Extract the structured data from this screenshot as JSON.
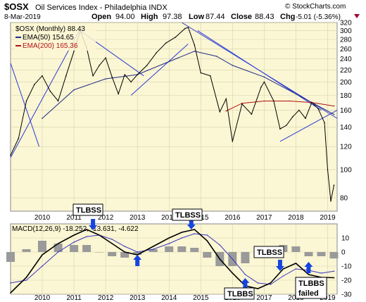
{
  "header": {
    "symbol": "$OSX",
    "name": "Oil Services Index - Philadelphia INDX",
    "watermark": "© StockCharts.com",
    "date": "8-Mar-2019",
    "open_label": "Open",
    "open": "94.00",
    "high_label": "High",
    "high": "97.38",
    "low_label": "Low",
    "low": "87.44",
    "close_label": "Close",
    "close": "88.43",
    "chg_label": "Chg",
    "chg": "-5.01 (-5.36%)"
  },
  "legend": {
    "price": "$OSX (Monthly) 88.43",
    "ema50": "EMA(50) 154.65",
    "ema200": "EMA(200) 165.36"
  },
  "macd_label": "MACD(12,26,9) -18.252, -13.631, -4.622",
  "annotations": {
    "tlbss_1": "TLBSS",
    "tlbss_2": "TLBSS",
    "tlbss_3": "TLBSS",
    "tlbbs": "TLBBS",
    "tlbbs_failed_1": "TLBBS",
    "tlbbs_failed_2": "failed"
  },
  "colors": {
    "panel_bg": "#fbf6d3",
    "price": "#000000",
    "ema50": "#1f2a8a",
    "ema200": "#b01212",
    "trendline": "#2a3bd6",
    "macd_line": "#000000",
    "signal_line": "#3a36c0",
    "histogram": "#9a9a9a",
    "arrow": "#1544e0",
    "down_triangle": "#a0002a"
  },
  "chart_data": [
    {
      "type": "line",
      "title": "$OSX Oil Services Index - Philadelphia INDX",
      "price_scale": "log",
      "ylim": [
        72,
        320
      ],
      "xlim": [
        2009.0,
        2019.3
      ],
      "yticks": [
        80,
        100,
        120,
        140,
        160,
        180,
        200,
        220,
        240,
        260,
        280,
        300,
        320
      ],
      "xticks": [
        2010,
        2011,
        2012,
        2013,
        2014,
        2015,
        2016,
        2017,
        2018,
        2019
      ],
      "series": [
        {
          "name": "$OSX (Monthly)",
          "x": [
            2009.0,
            2009.25,
            2009.5,
            2009.75,
            2010.0,
            2010.25,
            2010.5,
            2010.75,
            2011.0,
            2011.2,
            2011.4,
            2011.6,
            2011.8,
            2012.0,
            2012.2,
            2012.4,
            2012.6,
            2012.8,
            2013.0,
            2013.3,
            2013.6,
            2013.9,
            2014.2,
            2014.5,
            2014.6,
            2014.8,
            2015.0,
            2015.3,
            2015.6,
            2015.8,
            2016.0,
            2016.3,
            2016.6,
            2016.9,
            2017.0,
            2017.3,
            2017.5,
            2017.7,
            2017.9,
            2018.1,
            2018.3,
            2018.5,
            2018.7,
            2018.9,
            2019.0,
            2019.1,
            2019.2
          ],
          "y": [
            112,
            128,
            172,
            196,
            210,
            186,
            172,
            210,
            255,
            300,
            262,
            210,
            228,
            242,
            208,
            182,
            212,
            200,
            212,
            228,
            252,
            272,
            285,
            305,
            308,
            268,
            215,
            210,
            158,
            175,
            125,
            168,
            155,
            192,
            200,
            172,
            138,
            142,
            152,
            160,
            150,
            170,
            162,
            145,
            100,
            78,
            88.43
          ]
        },
        {
          "name": "EMA(50)",
          "values_at_end": 154.65,
          "x": [
            2010.0,
            2011.0,
            2012.0,
            2013.0,
            2014.0,
            2014.8,
            2015.5,
            2016.0,
            2017.0,
            2018.0,
            2019.2
          ],
          "y": [
            150,
            188,
            205,
            212,
            235,
            255,
            245,
            228,
            208,
            182,
            154.65
          ]
        },
        {
          "name": "EMA(200)",
          "values_at_end": 165.36,
          "x": [
            2015.8,
            2016.3,
            2017.0,
            2017.8,
            2018.5,
            2019.2
          ],
          "y": [
            159,
            169,
            172,
            172,
            170,
            165.36
          ]
        }
      ],
      "annotations": [
        "TLBSS (2011.5)",
        "TLBSS (2014.6)"
      ]
    },
    {
      "type": "bar",
      "title": "MACD(12,26,9) -18.252, -13.631, -4.622",
      "ylim": [
        -30,
        20
      ],
      "yticks": [
        -30,
        -20,
        -10,
        0,
        10
      ],
      "xticks": [
        2010,
        2011,
        2012,
        2013,
        2014,
        2015,
        2016,
        2017,
        2018,
        2019
      ],
      "series": [
        {
          "name": "MACD",
          "x": [
            2009.0,
            2009.5,
            2010.0,
            2010.5,
            2011.0,
            2011.4,
            2011.8,
            2012.2,
            2012.6,
            2013.0,
            2013.5,
            2014.0,
            2014.4,
            2014.8,
            2015.2,
            2015.6,
            2016.0,
            2016.4,
            2016.8,
            2017.2,
            2017.6,
            2018.0,
            2018.4,
            2018.8,
            2019.2
          ],
          "y": [
            -29,
            -18,
            -2,
            6,
            12,
            16,
            12,
            6,
            0,
            -2,
            4,
            10,
            14,
            16,
            8,
            -5,
            -15,
            -24,
            -26,
            -22,
            -12,
            -8,
            -16,
            -18,
            -18.252
          ]
        },
        {
          "name": "Signal",
          "x": [
            2009.0,
            2009.5,
            2010.0,
            2010.5,
            2011.0,
            2011.4,
            2011.8,
            2012.2,
            2012.6,
            2013.0,
            2013.5,
            2014.0,
            2014.4,
            2014.8,
            2015.2,
            2015.6,
            2016.0,
            2016.4,
            2016.8,
            2017.2,
            2017.6,
            2018.0,
            2018.4,
            2018.8,
            2019.2
          ],
          "y": [
            -22,
            -20,
            -10,
            0,
            7,
            11,
            12,
            9,
            4,
            0,
            2,
            6,
            10,
            13,
            12,
            5,
            -5,
            -16,
            -22,
            -23,
            -17,
            -12,
            -13,
            -15,
            -13.631
          ]
        },
        {
          "name": "Histogram",
          "x": [
            2009.0,
            2009.5,
            2010.0,
            2010.5,
            2011.0,
            2011.4,
            2011.8,
            2012.2,
            2012.6,
            2013.0,
            2013.5,
            2014.0,
            2014.4,
            2014.8,
            2015.2,
            2015.6,
            2016.0,
            2016.4,
            2016.8,
            2017.2,
            2017.6,
            2018.0,
            2018.4,
            2018.8,
            2019.2
          ],
          "y": [
            -7,
            2,
            8,
            6,
            5,
            5,
            0,
            -3,
            -4,
            -2,
            2,
            4,
            4,
            3,
            -4,
            -10,
            -10,
            -8,
            -4,
            1,
            5,
            4,
            -3,
            -3,
            -4.622
          ]
        }
      ],
      "annotations": [
        "TLBSS (2011.5)",
        "TLBSS (2014.6)",
        "TLBSS (2017.5)",
        "TLBBS (2016.4)",
        "TLBBS failed (2018.4)"
      ]
    }
  ]
}
